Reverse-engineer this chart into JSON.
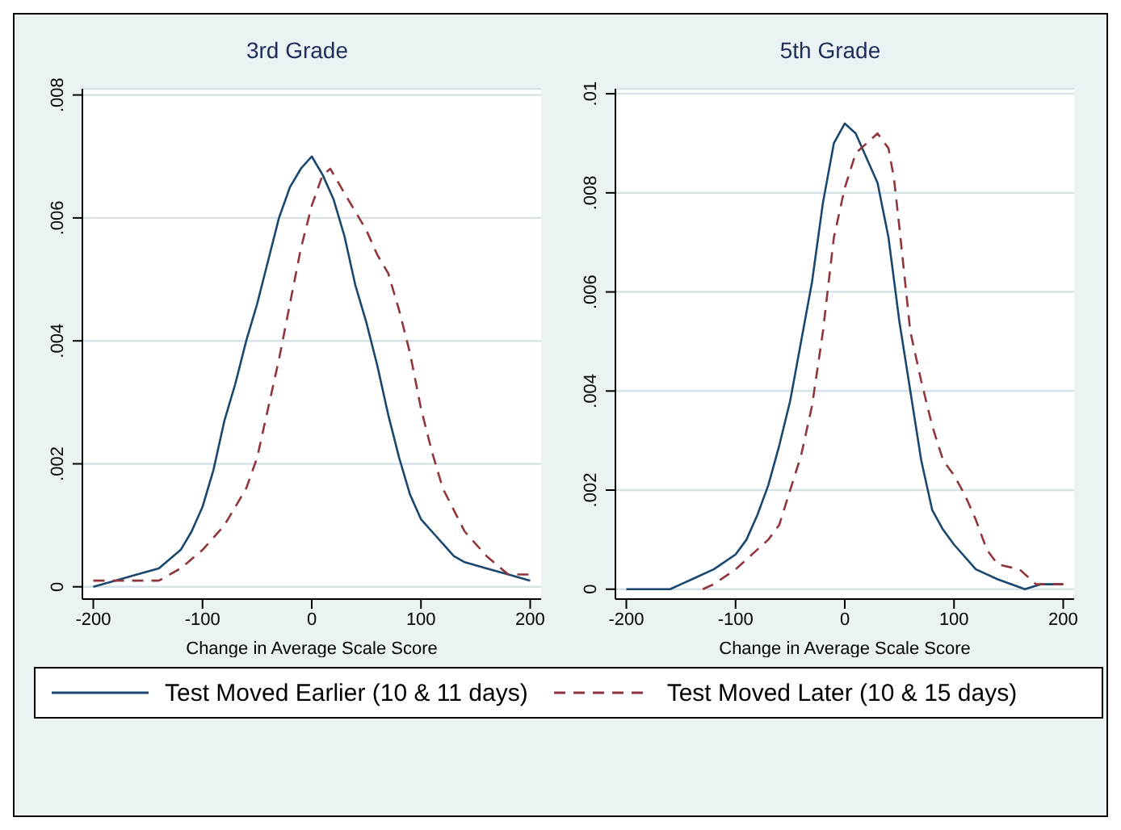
{
  "chart_data": [
    {
      "type": "line",
      "title": "3rd Grade",
      "xlabel": "Change in Average Scale Score",
      "xlim": [
        -210,
        210
      ],
      "xticks": [
        -200,
        -100,
        0,
        100,
        200
      ],
      "ylim": [
        -0.0002,
        0.0081
      ],
      "yticks": [
        0,
        {
          "value": 0.002,
          "label": ".002"
        },
        {
          "value": 0.004,
          "label": ".004"
        },
        {
          "value": 0.006,
          "label": ".006"
        },
        {
          "value": 0.008,
          "label": ".008"
        }
      ],
      "grid": "y",
      "legend": "bottom",
      "marker": "none",
      "series": [
        {
          "name": "Test Moved Earlier (10 & 11 days)",
          "color": "#1a476f",
          "line_style": "solid",
          "x": [
            -200,
            -180,
            -160,
            -140,
            -120,
            -110,
            -100,
            -90,
            -80,
            -70,
            -60,
            -50,
            -40,
            -30,
            -20,
            -10,
            0,
            10,
            20,
            30,
            40,
            50,
            60,
            70,
            80,
            90,
            100,
            110,
            120,
            130,
            140,
            160,
            180,
            200
          ],
          "values": [
            0,
            0.0001,
            0.0002,
            0.0003,
            0.0006,
            0.0009,
            0.0013,
            0.0019,
            0.0027,
            0.0033,
            0.004,
            0.0046,
            0.0053,
            0.006,
            0.0065,
            0.0068,
            0.007,
            0.0067,
            0.0063,
            0.0057,
            0.0049,
            0.0043,
            0.0036,
            0.0028,
            0.0021,
            0.0015,
            0.0011,
            0.0009,
            0.0007,
            0.0005,
            0.0004,
            0.0003,
            0.0002,
            0.0001
          ]
        },
        {
          "name": "Test Moved Later (10 & 15 days)",
          "color": "#90353b",
          "line_style": "dashed",
          "x": [
            -200,
            -180,
            -160,
            -140,
            -120,
            -100,
            -80,
            -60,
            -50,
            -40,
            -30,
            -20,
            -10,
            0,
            10,
            17,
            30,
            40,
            50,
            60,
            70,
            80,
            90,
            100,
            110,
            120,
            140,
            160,
            180,
            200
          ],
          "values": [
            0.0001,
            0.0001,
            0.0001,
            0.0001,
            0.0003,
            0.0006,
            0.001,
            0.0016,
            0.0021,
            0.0029,
            0.0037,
            0.0046,
            0.0055,
            0.0062,
            0.0067,
            0.0068,
            0.0064,
            0.0061,
            0.0058,
            0.0054,
            0.0051,
            0.0045,
            0.0038,
            0.0029,
            0.0022,
            0.0016,
            0.0009,
            0.0005,
            0.0002,
            0.0002
          ]
        }
      ]
    },
    {
      "type": "line",
      "title": "5th Grade",
      "xlabel": "Change in Average Scale Score",
      "xlim": [
        -210,
        210
      ],
      "xticks": [
        -200,
        -100,
        0,
        100,
        200
      ],
      "ylim": [
        -0.0002,
        0.0101
      ],
      "yticks": [
        0,
        {
          "value": 0.002,
          "label": ".002"
        },
        {
          "value": 0.004,
          "label": ".004"
        },
        {
          "value": 0.006,
          "label": ".006"
        },
        {
          "value": 0.008,
          "label": ".008"
        },
        {
          "value": 0.01,
          "label": ".01"
        }
      ],
      "grid": "y",
      "legend": "bottom",
      "marker": "none",
      "series": [
        {
          "name": "Test Moved Earlier (10 & 11 days)",
          "color": "#1a476f",
          "line_style": "solid",
          "x": [
            -200,
            -160,
            -150,
            -140,
            -120,
            -100,
            -90,
            -80,
            -70,
            -60,
            -50,
            -40,
            -30,
            -20,
            -10,
            0,
            10,
            20,
            30,
            40,
            50,
            60,
            70,
            80,
            90,
            100,
            120,
            140,
            165,
            180,
            200
          ],
          "values": [
            0,
            0,
            0.0001,
            0.0002,
            0.0004,
            0.0007,
            0.001,
            0.0015,
            0.0021,
            0.0029,
            0.0038,
            0.005,
            0.0062,
            0.0078,
            0.009,
            0.0094,
            0.0092,
            0.0087,
            0.0082,
            0.0071,
            0.0054,
            0.004,
            0.0026,
            0.0016,
            0.0012,
            0.0009,
            0.0004,
            0.0002,
            0,
            0.0001,
            0.0001
          ]
        },
        {
          "name": "Test Moved Later (10 & 15 days)",
          "color": "#90353b",
          "line_style": "dashed",
          "x": [
            -130,
            -120,
            -100,
            -80,
            -70,
            -60,
            -50,
            -40,
            -30,
            -20,
            -10,
            0,
            10,
            20,
            30,
            40,
            45,
            50,
            60,
            70,
            80,
            90,
            100,
            110,
            120,
            130,
            140,
            160,
            175,
            200
          ],
          "values": [
            0,
            0.0001,
            0.0004,
            0.0008,
            0.001,
            0.0013,
            0.002,
            0.0027,
            0.0037,
            0.0052,
            0.0071,
            0.0081,
            0.0088,
            0.009,
            0.0092,
            0.0089,
            0.0083,
            0.0073,
            0.0052,
            0.0042,
            0.0033,
            0.0026,
            0.0023,
            0.0019,
            0.0014,
            0.0008,
            0.0005,
            0.0004,
            0.0001,
            0.0001
          ]
        }
      ]
    }
  ]
}
